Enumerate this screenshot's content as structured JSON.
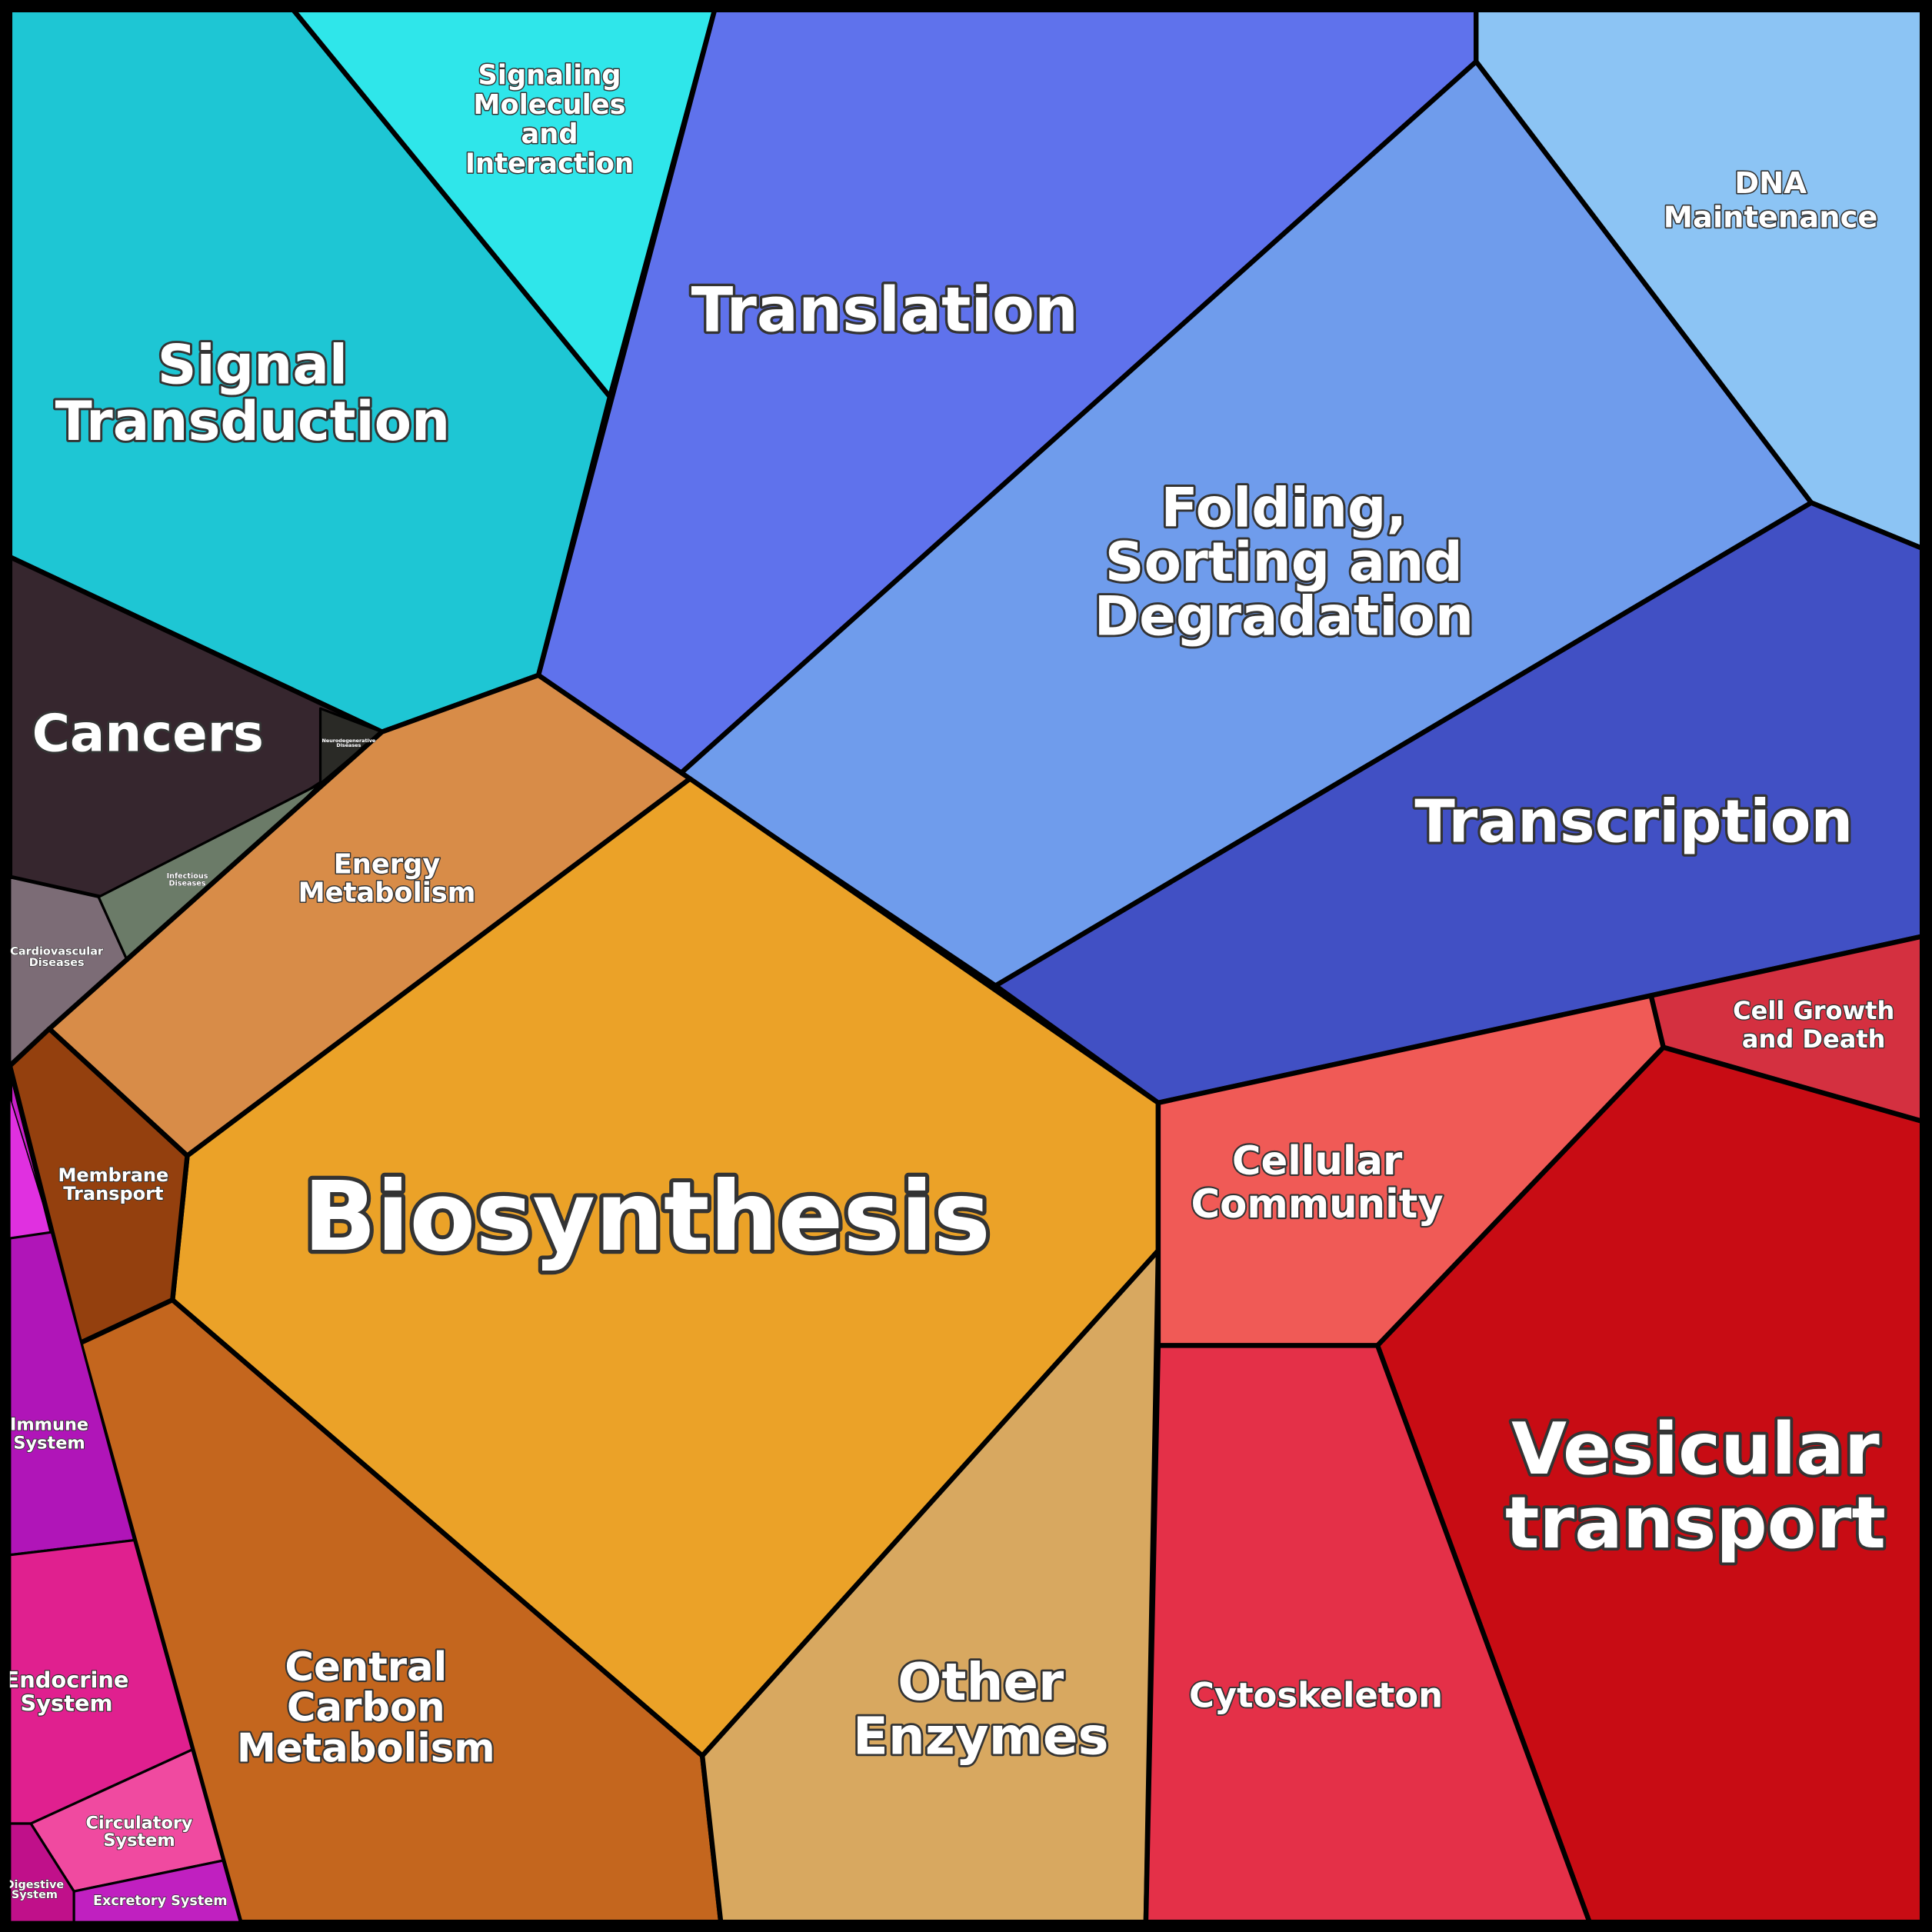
{
  "regions": [
    {
      "lines": [
        "Signal",
        "Transduction"
      ]
    },
    {
      "lines": [
        "Signaling",
        "Molecules",
        "and",
        "Interaction"
      ]
    },
    {
      "lines": [
        "Translation"
      ]
    },
    {
      "lines": [
        "DNA",
        "Maintenance"
      ]
    },
    {
      "lines": [
        "Folding,",
        "Sorting and",
        "Degradation"
      ]
    },
    {
      "lines": [
        "Transcription"
      ]
    },
    {
      "lines": [
        "Cancers"
      ]
    },
    {
      "lines": [
        "Cardiovascular",
        "Diseases"
      ]
    },
    {
      "lines": [
        "Infectious",
        "Diseases"
      ]
    },
    {
      "lines": [
        "Neurodegenerative",
        "Diseases"
      ]
    },
    {
      "lines": [
        "Energy",
        "Metabolism"
      ]
    },
    {
      "lines": [
        "Biosynthesis"
      ]
    },
    {
      "lines": [
        "Membrane",
        "Transport"
      ]
    },
    {
      "lines": [
        "Central",
        "Carbon",
        "Metabolism"
      ]
    },
    {
      "lines": [
        "Other",
        "Enzymes"
      ]
    },
    {
      "lines": [
        "Cellular",
        "Community"
      ]
    },
    {
      "lines": [
        "Cell Growth",
        "and Death"
      ]
    },
    {
      "lines": [
        "Vesicular",
        "transport"
      ]
    },
    {
      "lines": [
        "Cytoskeleton"
      ]
    },
    {
      "lines": [
        "Immune",
        "System"
      ]
    },
    {
      "lines": [
        "Endocrine",
        "System"
      ]
    },
    {
      "lines": [
        "Circulatory",
        "System"
      ]
    },
    {
      "lines": [
        "Digestive",
        "System"
      ]
    },
    {
      "lines": [
        "Excretory System"
      ]
    }
  ]
}
